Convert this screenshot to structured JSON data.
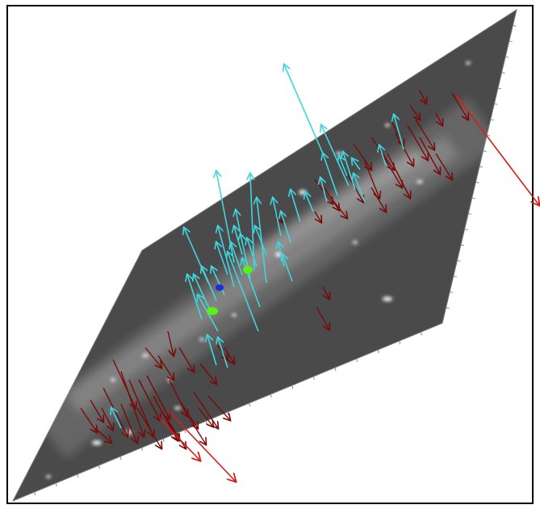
{
  "figure": {
    "background": "#ffffff",
    "frame_color": "#000000",
    "plane_color": "#4a4a4a",
    "plane_edge_color": "#777777"
  },
  "vector_groups": [
    {
      "name": "cyan-arrows",
      "color": "#3fd6e0",
      "direction": "up-left",
      "count": 38
    },
    {
      "name": "dark-red-arrows",
      "color": "#7a0a0a",
      "direction": "down-right",
      "count": 52
    },
    {
      "name": "bright-red-arrows",
      "color": "#d81c1c",
      "direction": "down-right",
      "count": 3
    }
  ],
  "markers": [
    {
      "name": "blue-marker",
      "color": "#1a2de0"
    },
    {
      "name": "green-marker",
      "color": "#5cf015"
    },
    {
      "name": "green-marker",
      "color": "#5cf015"
    }
  ]
}
